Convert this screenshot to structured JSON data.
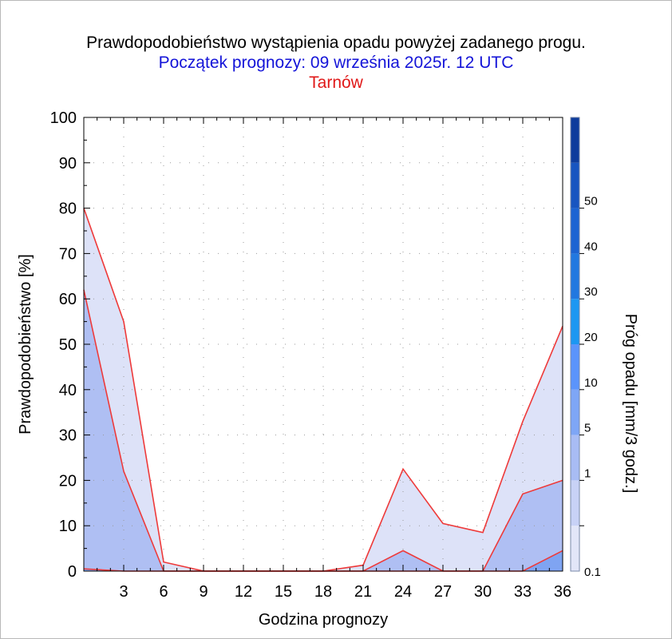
{
  "chart_data": {
    "type": "area",
    "title": "Prawdopodobieństwo wystąpienia opadu powyżej zadanego progu.",
    "subtitle": "Początek prognozy: 09 września 2025r. 12 UTC",
    "location": "Tarnów",
    "xlabel": "Godzina prognozy",
    "ylabel": "Prawdopodobieństwo [%]",
    "colorbar_label": "Próg opadu [mm/3 godz.]",
    "xlim": [
      0,
      36
    ],
    "ylim": [
      0,
      100
    ],
    "x_ticks": [
      "3",
      "6",
      "9",
      "12",
      "15",
      "18",
      "21",
      "24",
      "27",
      "30",
      "33",
      "36"
    ],
    "y_ticks": [
      "0",
      "10",
      "20",
      "30",
      "40",
      "50",
      "60",
      "70",
      "80",
      "90",
      "100"
    ],
    "grid": true,
    "x": [
      0,
      3,
      6,
      9,
      12,
      15,
      18,
      21,
      24,
      27,
      30,
      33,
      36
    ],
    "series": [
      {
        "threshold": 0.1,
        "values": [
          80,
          55,
          2,
          0,
          0,
          0,
          0,
          1.3,
          22.5,
          10.5,
          8.5,
          33,
          54
        ]
      },
      {
        "threshold": 1,
        "values": [
          62,
          22,
          0,
          0,
          0,
          0,
          0,
          0,
          4.5,
          0,
          0,
          17,
          20
        ]
      },
      {
        "threshold": 5,
        "values": [
          0.5,
          0,
          0,
          0,
          0,
          0,
          0,
          0,
          0,
          0,
          0,
          0,
          4.5
        ]
      }
    ],
    "colorbar": {
      "labels": [
        "0.1",
        "1",
        "5",
        "10",
        "20",
        "30",
        "40",
        "50"
      ],
      "colors": [
        "#e2e6f8",
        "#c8d2f6",
        "#a8bcf4",
        "#7ea6f6",
        "#5b94fb",
        "#1c97f2",
        "#2178e0",
        "#1c64d2",
        "#1855c0",
        "#0e3c9c"
      ]
    },
    "fill_colors": [
      "#dde2f8",
      "#afbff3",
      "#7fa4f2"
    ],
    "line_color": "#ee3a3a"
  }
}
